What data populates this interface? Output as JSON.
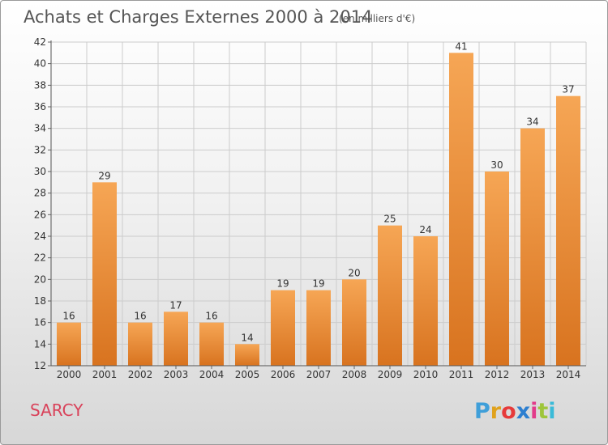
{
  "title": "Achats et Charges Externes 2000 à 2014",
  "subtitle": "(en milliers d'€)",
  "place": "SARCY",
  "logo": {
    "letters": [
      "P",
      "r",
      "o",
      "x",
      "i",
      "t",
      "i"
    ],
    "colors": [
      "#3f9fd9",
      "#e0a21c",
      "#e63a3a",
      "#2d7fd0",
      "#e23b8a",
      "#9ec53a",
      "#3bbbd8"
    ]
  },
  "colors": {
    "bar": "#f29a42",
    "bar_dark": "#d8731f",
    "grid": "#cccccc"
  },
  "chart_data": {
    "type": "bar",
    "title": "Achats et Charges Externes 2000 à 2014",
    "subtitle": "(en milliers d'€)",
    "xlabel": "",
    "ylabel": "",
    "categories": [
      "2000",
      "2001",
      "2002",
      "2003",
      "2004",
      "2005",
      "2006",
      "2007",
      "2008",
      "2009",
      "2010",
      "2011",
      "2012",
      "2013",
      "2014"
    ],
    "values": [
      16,
      29,
      16,
      17,
      16,
      14,
      19,
      19,
      20,
      25,
      24,
      41,
      30,
      34,
      37
    ],
    "ylim": [
      12,
      42
    ],
    "yticks": [
      12,
      14,
      16,
      18,
      20,
      22,
      24,
      26,
      28,
      30,
      32,
      34,
      36,
      38,
      40,
      42
    ],
    "grid": true,
    "legend": "none"
  }
}
